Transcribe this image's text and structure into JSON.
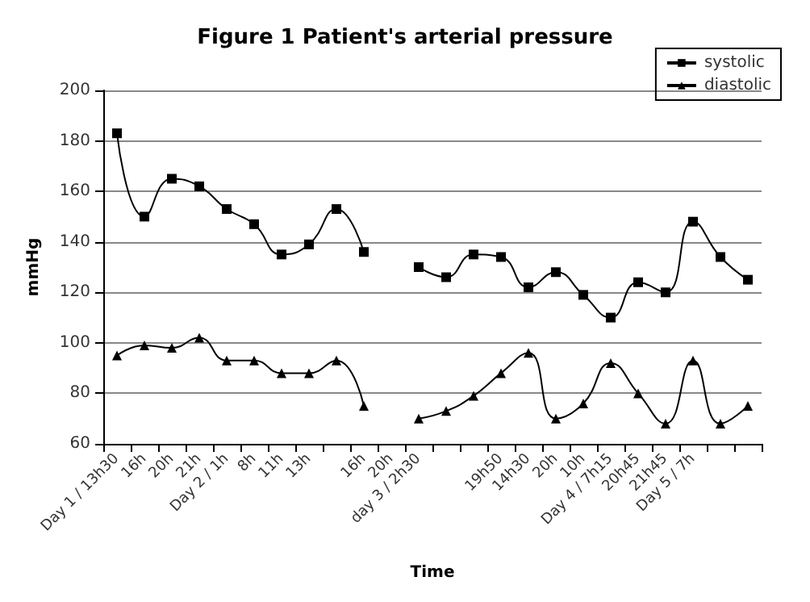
{
  "chart_data": {
    "type": "line",
    "title": "Figure 1 Patient's arterial pressure",
    "xlabel": "Time",
    "ylabel": "mmHg",
    "categories": [
      "Day 1 / 13h30",
      "16h",
      "20h",
      "21h",
      "Day 2 / 1h",
      "8h",
      "11h",
      "13h",
      null,
      "16h",
      "20h",
      "day 3 / 2h30",
      null,
      null,
      "19h50",
      "14h30",
      "20h",
      "10h",
      "Day 4 / 7h15",
      "20h45",
      "21h45",
      "Day 5 / 7h",
      null,
      null
    ],
    "series": [
      {
        "name": "systolic",
        "color": "#000000",
        "marker": "square",
        "values": [
          183,
          150,
          165,
          162,
          153,
          147,
          135,
          139,
          153,
          136,
          null,
          130,
          126,
          135,
          134,
          122,
          128,
          119,
          110,
          124,
          120,
          148,
          134,
          125
        ]
      },
      {
        "name": "diastolic",
        "color": "#000000",
        "marker": "triangle",
        "values": [
          95,
          99,
          98,
          102,
          93,
          93,
          88,
          88,
          93,
          75,
          null,
          70,
          73,
          79,
          88,
          96,
          70,
          76,
          92,
          80,
          68,
          93,
          68,
          75
        ]
      }
    ],
    "ylim": [
      60,
      200
    ],
    "yticks": [
      60,
      80,
      100,
      120,
      140,
      160,
      180,
      200
    ],
    "grid": "y",
    "legend": "top right",
    "line_style": "solid"
  }
}
